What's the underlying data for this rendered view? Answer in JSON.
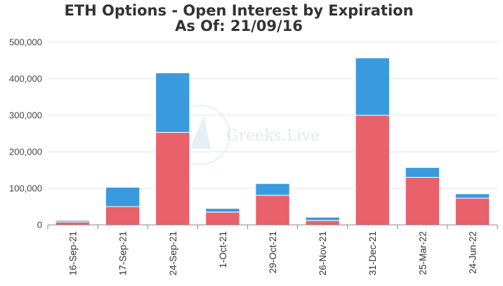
{
  "chart_data": {
    "type": "bar",
    "stacked": true,
    "title": "ETH Options - Open Interest by Expiration",
    "subtitle": "As Of: 21/09/16",
    "categories": [
      "16-Sep-21",
      "17-Sep-21",
      "24-Sep-21",
      "1-Oct-21",
      "29-Oct-21",
      "26-Nov-21",
      "31-Dec-21",
      "25-Mar-22",
      "24-Jun-22"
    ],
    "series": [
      {
        "values": [
          8000,
          50000,
          253000,
          35000,
          81000,
          12000,
          300000,
          130000,
          73000
        ],
        "color": "#e8616b"
      },
      {
        "values": [
          4000,
          53000,
          163000,
          10000,
          32000,
          9000,
          157000,
          27000,
          12000
        ],
        "color": "#3a9ade"
      }
    ],
    "yticks": [
      "0",
      "100,000",
      "200,000",
      "300,000",
      "400,000",
      "500,000"
    ],
    "ylim": [
      0,
      500000
    ],
    "grid": true,
    "legend": "none",
    "watermark": "Greeks.Live"
  }
}
